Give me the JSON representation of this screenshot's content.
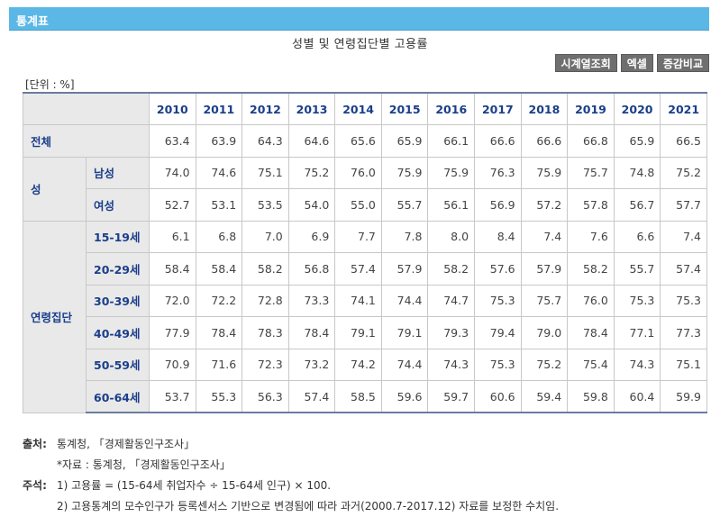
{
  "header": {
    "title": "통계표"
  },
  "table_title": "성별 및 연령집단별 고용률",
  "buttons": [
    "시계열조회",
    "엑셀",
    "증감비교"
  ],
  "unit": "[단위 : %]",
  "years": [
    "2010",
    "2011",
    "2012",
    "2013",
    "2014",
    "2015",
    "2016",
    "2017",
    "2018",
    "2019",
    "2020",
    "2021"
  ],
  "rows": {
    "total": {
      "label": "전체",
      "values": [
        "63.4",
        "63.9",
        "64.3",
        "64.6",
        "65.6",
        "65.9",
        "66.1",
        "66.6",
        "66.6",
        "66.8",
        "65.9",
        "66.5"
      ]
    },
    "sex": {
      "label": "성",
      "items": [
        {
          "label": "남성",
          "values": [
            "74.0",
            "74.6",
            "75.1",
            "75.2",
            "76.0",
            "75.9",
            "75.9",
            "76.3",
            "75.9",
            "75.7",
            "74.8",
            "75.2"
          ]
        },
        {
          "label": "여성",
          "values": [
            "52.7",
            "53.1",
            "53.5",
            "54.0",
            "55.0",
            "55.7",
            "56.1",
            "56.9",
            "57.2",
            "57.8",
            "56.7",
            "57.7"
          ]
        }
      ]
    },
    "age": {
      "label": "연령집단",
      "items": [
        {
          "label": "15-19세",
          "values": [
            "6.1",
            "6.8",
            "7.0",
            "6.9",
            "7.7",
            "7.8",
            "8.0",
            "8.4",
            "7.4",
            "7.6",
            "6.6",
            "7.4"
          ]
        },
        {
          "label": "20-29세",
          "values": [
            "58.4",
            "58.4",
            "58.2",
            "56.8",
            "57.4",
            "57.9",
            "58.2",
            "57.6",
            "57.9",
            "58.2",
            "55.7",
            "57.4"
          ]
        },
        {
          "label": "30-39세",
          "values": [
            "72.0",
            "72.2",
            "72.8",
            "73.3",
            "74.1",
            "74.4",
            "74.7",
            "75.3",
            "75.7",
            "76.0",
            "75.3",
            "75.3"
          ]
        },
        {
          "label": "40-49세",
          "values": [
            "77.9",
            "78.4",
            "78.3",
            "78.4",
            "79.1",
            "79.1",
            "79.3",
            "79.4",
            "79.0",
            "78.4",
            "77.1",
            "77.3"
          ]
        },
        {
          "label": "50-59세",
          "values": [
            "70.9",
            "71.6",
            "72.3",
            "73.2",
            "74.2",
            "74.4",
            "74.3",
            "75.3",
            "75.2",
            "75.4",
            "74.3",
            "75.1"
          ]
        },
        {
          "label": "60-64세",
          "values": [
            "53.7",
            "55.3",
            "56.3",
            "57.4",
            "58.5",
            "59.6",
            "59.7",
            "60.6",
            "59.4",
            "59.8",
            "60.4",
            "59.9"
          ]
        }
      ]
    }
  },
  "footer": {
    "source_label": "출처:",
    "source": "통계청, 「경제활동인구조사」",
    "source_sub": "*자료 : 통계청, 「경제활동인구조사」",
    "note_label": "주석:",
    "note1": "1) 고용률 = (15-64세 취업자수 ÷ 15-64세 인구) × 100.",
    "note2": "2) 고용통계의 모수인구가 등록센서스 기반으로 변경됨에 따라 과거(2000.7-2017.12) 자료를 보정한 수치임."
  }
}
